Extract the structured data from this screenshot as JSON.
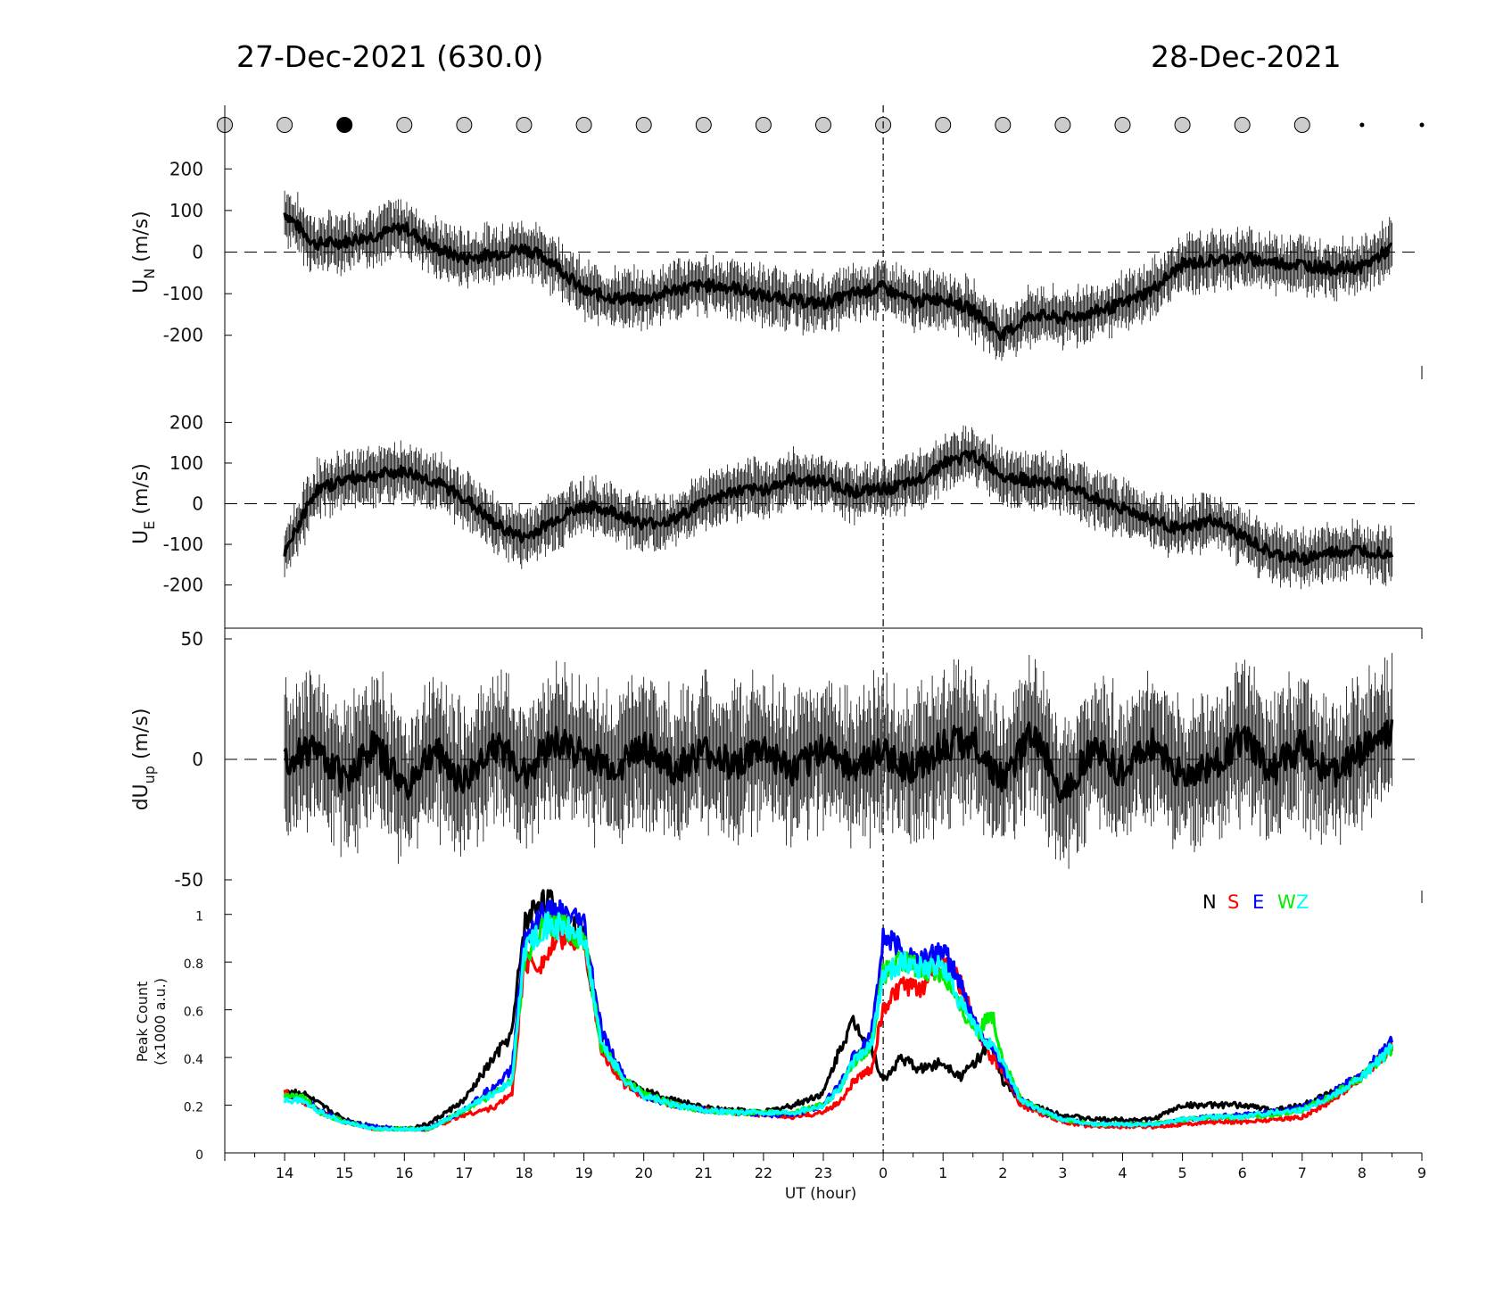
{
  "titles": {
    "left": "27-Dec-2021 (630.0)",
    "right": "28-Dec-2021"
  },
  "xaxis": {
    "label": "UT (hour)",
    "ticks": [
      "14",
      "15",
      "16",
      "17",
      "18",
      "19",
      "20",
      "21",
      "22",
      "23",
      "0",
      "1",
      "2",
      "3",
      "4",
      "5",
      "6",
      "7",
      "8",
      "9"
    ]
  },
  "legend": {
    "entries": [
      "N",
      "S",
      "E",
      "W",
      "Z"
    ],
    "colors": [
      "#000000",
      "#ff0000",
      "#0000ff",
      "#00ee00",
      "#00ffff"
    ]
  },
  "cloud_markers": {
    "states": [
      "gray",
      "gray",
      "black",
      "gray",
      "gray",
      "gray",
      "gray",
      "gray",
      "gray",
      "gray",
      "gray",
      "gray",
      "gray",
      "gray",
      "gray",
      "gray",
      "gray",
      "gray",
      "gray",
      "dot",
      "dot"
    ]
  },
  "chart_data": [
    {
      "type": "line",
      "panel": "UN",
      "ylabel_main": "U",
      "ylabel_sub": "N",
      "ylabel_unit": "(m/s)",
      "ylim": [
        -280,
        280
      ],
      "yticks": [
        "-200",
        "-100",
        "0",
        "100",
        "200"
      ],
      "x": [
        14,
        14.5,
        15,
        15.5,
        16,
        16.5,
        17,
        17.5,
        18,
        18.5,
        19,
        19.5,
        20,
        20.5,
        21,
        21.5,
        22,
        22.5,
        23,
        23.5,
        24,
        24.5,
        25,
        25.5,
        26,
        26.5,
        27,
        27.5,
        28,
        28.5,
        29,
        29.5,
        30,
        30.5,
        31,
        31.5,
        32,
        32.5
      ],
      "values": [
        95,
        20,
        25,
        40,
        60,
        10,
        -15,
        -5,
        10,
        -25,
        -95,
        -110,
        -115,
        -90,
        -80,
        -85,
        -105,
        -115,
        -125,
        -100,
        -85,
        -120,
        -110,
        -140,
        -200,
        -150,
        -160,
        -145,
        -125,
        -90,
        -30,
        -20,
        -15,
        -25,
        -30,
        -40,
        -35,
        10
      ]
    },
    {
      "type": "line",
      "panel": "UE",
      "ylabel_main": "U",
      "ylabel_sub": "E",
      "ylabel_unit": "(m/s)",
      "ylim": [
        -280,
        280
      ],
      "yticks": [
        "-200",
        "-100",
        "0",
        "100",
        "200"
      ],
      "x": [
        14,
        14.5,
        15,
        15.5,
        16,
        16.5,
        17,
        17.5,
        18,
        18.5,
        19,
        19.5,
        20,
        20.5,
        21,
        21.5,
        22,
        22.5,
        23,
        23.5,
        24,
        24.5,
        25,
        25.5,
        26,
        26.5,
        27,
        27.5,
        28,
        28.5,
        29,
        29.5,
        30,
        30.5,
        31,
        31.5,
        32,
        32.5
      ],
      "values": [
        -125,
        30,
        60,
        70,
        80,
        55,
        15,
        -50,
        -85,
        -40,
        -5,
        -20,
        -50,
        -40,
        5,
        30,
        35,
        60,
        55,
        30,
        35,
        50,
        100,
        120,
        70,
        55,
        50,
        15,
        -10,
        -40,
        -65,
        -40,
        -80,
        -125,
        -135,
        -120,
        -115,
        -120
      ]
    },
    {
      "type": "line",
      "panel": "dUup",
      "ylabel_main": "dU",
      "ylabel_sub": "up",
      "ylabel_unit": "(m/s)",
      "ylim": [
        -50,
        50
      ],
      "yticks": [
        "-50",
        "0",
        "50"
      ],
      "x": [
        14,
        14.5,
        15,
        15.5,
        16,
        16.5,
        17,
        17.5,
        18,
        18.5,
        19,
        19.5,
        20,
        20.5,
        21,
        21.5,
        22,
        22.5,
        23,
        23.5,
        24,
        24.5,
        25,
        25.5,
        26,
        26.5,
        27,
        27.5,
        28,
        28.5,
        29,
        29.5,
        30,
        30.5,
        31,
        31.5,
        32,
        32.5
      ],
      "values": [
        0,
        5,
        -8,
        6,
        -12,
        4,
        -10,
        7,
        -6,
        8,
        2,
        -4,
        6,
        -5,
        3,
        -2,
        4,
        -6,
        5,
        -3,
        2,
        -4,
        6,
        8,
        -10,
        12,
        -14,
        5,
        -6,
        7,
        -8,
        -3,
        9,
        -5,
        6,
        -7,
        4,
        10
      ]
    },
    {
      "type": "line",
      "panel": "peak",
      "ylabel_main": "Peak Count",
      "ylabel_unit": "(x1000 a.u.)",
      "ylim": [
        0,
        1.1
      ],
      "yticks": [
        "0",
        "0.2",
        "0.4",
        "0.6",
        "0.8",
        "1"
      ],
      "x": [
        14,
        14.3,
        14.6,
        15,
        15.5,
        16,
        16.4,
        17,
        17.5,
        17.8,
        18,
        18.3,
        18.6,
        19,
        19.3,
        19.7,
        20,
        20.5,
        21,
        21.5,
        22,
        22.5,
        23,
        23.3,
        23.5,
        23.8,
        24,
        24.3,
        24.6,
        25,
        25.3,
        25.6,
        25.8,
        26,
        26.3,
        26.7,
        27,
        27.5,
        28,
        28.5,
        29,
        29.5,
        30,
        30.5,
        31,
        31.5,
        32,
        32.5
      ],
      "series": [
        {
          "name": "N",
          "color": "#000000",
          "values": [
            0.26,
            0.25,
            0.2,
            0.14,
            0.11,
            0.1,
            0.12,
            0.22,
            0.4,
            0.5,
            0.95,
            1.08,
            1.0,
            0.9,
            0.45,
            0.3,
            0.26,
            0.22,
            0.19,
            0.18,
            0.17,
            0.2,
            0.25,
            0.45,
            0.55,
            0.45,
            0.3,
            0.4,
            0.35,
            0.38,
            0.32,
            0.4,
            0.45,
            0.3,
            0.22,
            0.18,
            0.16,
            0.14,
            0.14,
            0.14,
            0.2,
            0.2,
            0.2,
            0.18,
            0.2,
            0.25,
            0.32,
            0.46
          ]
        },
        {
          "name": "S",
          "color": "#ff0000",
          "values": [
            0.25,
            0.22,
            0.17,
            0.13,
            0.1,
            0.1,
            0.1,
            0.16,
            0.19,
            0.25,
            0.8,
            0.8,
            0.9,
            0.9,
            0.42,
            0.28,
            0.24,
            0.2,
            0.18,
            0.17,
            0.16,
            0.15,
            0.17,
            0.22,
            0.3,
            0.35,
            0.6,
            0.7,
            0.68,
            0.82,
            0.7,
            0.5,
            0.4,
            0.35,
            0.2,
            0.16,
            0.13,
            0.11,
            0.11,
            0.11,
            0.12,
            0.13,
            0.13,
            0.14,
            0.15,
            0.22,
            0.32,
            0.45
          ]
        },
        {
          "name": "E",
          "color": "#0000ff",
          "values": [
            0.24,
            0.22,
            0.18,
            0.13,
            0.11,
            0.1,
            0.1,
            0.18,
            0.28,
            0.35,
            0.9,
            1.0,
            1.0,
            0.95,
            0.5,
            0.3,
            0.24,
            0.2,
            0.18,
            0.17,
            0.16,
            0.16,
            0.2,
            0.3,
            0.4,
            0.5,
            0.9,
            0.85,
            0.8,
            0.85,
            0.7,
            0.5,
            0.45,
            0.35,
            0.22,
            0.17,
            0.14,
            0.12,
            0.12,
            0.12,
            0.14,
            0.15,
            0.16,
            0.17,
            0.19,
            0.25,
            0.33,
            0.47
          ]
        },
        {
          "name": "W",
          "color": "#00ee00",
          "values": [
            0.24,
            0.23,
            0.17,
            0.13,
            0.1,
            0.1,
            0.1,
            0.18,
            0.25,
            0.3,
            0.8,
            0.95,
            0.95,
            0.9,
            0.45,
            0.3,
            0.25,
            0.2,
            0.18,
            0.17,
            0.17,
            0.17,
            0.2,
            0.28,
            0.38,
            0.45,
            0.75,
            0.8,
            0.78,
            0.75,
            0.6,
            0.5,
            0.6,
            0.4,
            0.22,
            0.17,
            0.14,
            0.12,
            0.12,
            0.12,
            0.14,
            0.15,
            0.15,
            0.16,
            0.18,
            0.24,
            0.32,
            0.44
          ]
        },
        {
          "name": "Z",
          "color": "#00ffff",
          "values": [
            0.22,
            0.22,
            0.17,
            0.13,
            0.1,
            0.1,
            0.1,
            0.18,
            0.25,
            0.3,
            0.85,
            0.95,
            0.95,
            0.9,
            0.45,
            0.3,
            0.24,
            0.2,
            0.18,
            0.17,
            0.17,
            0.17,
            0.2,
            0.28,
            0.38,
            0.45,
            0.75,
            0.8,
            0.78,
            0.78,
            0.62,
            0.5,
            0.45,
            0.38,
            0.22,
            0.17,
            0.14,
            0.12,
            0.12,
            0.12,
            0.14,
            0.15,
            0.15,
            0.17,
            0.18,
            0.24,
            0.32,
            0.44
          ]
        }
      ]
    }
  ]
}
